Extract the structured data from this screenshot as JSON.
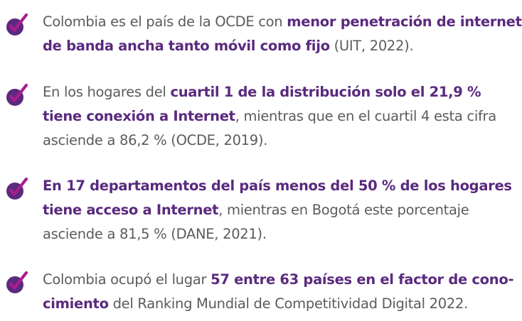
{
  "colors": {
    "accent": "#5a2a7e",
    "check": "#ab1c8c",
    "body_text": "#5b5b5b"
  },
  "bullet_icon": "check-circle-icon",
  "items": [
    {
      "line1": {
        "a": "Colombia es el país de la OCDE con ",
        "b": "menor penetración de internet"
      },
      "line2": {
        "a": "de banda ancha tanto móvil como fijo",
        "b": " (UIT, 2022)."
      }
    },
    {
      "line1": {
        "a": "En los hogares del ",
        "b": "cuartil 1 de la distribución solo el 21,9 %"
      },
      "line2": {
        "a": "tiene conexión a Internet",
        "b": ", mientras que en el cuartil 4 esta cifra"
      },
      "line3": "asciende a 86,2 % (OCDE, 2019)."
    },
    {
      "line1": "En 17 departamentos del país menos del 50 % de los hogares",
      "line2": {
        "a": "tiene acceso a Internet",
        "b": ", mientras en Bogotá este porcentaje"
      },
      "line3": "asciende a 81,5 % (DANE, 2021)."
    },
    {
      "line1": {
        "a": "Colombia ocupó el lugar ",
        "b": "57 entre 63 países en el factor de cono-"
      },
      "line2": {
        "a": "cimiento",
        "b": " del Ranking Mundial de Competitividad Digital 2022."
      }
    }
  ]
}
